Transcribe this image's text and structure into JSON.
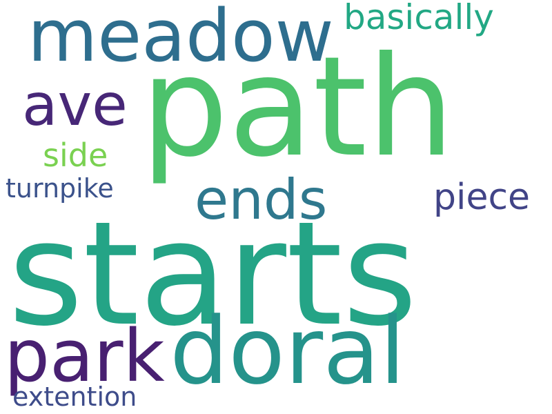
{
  "words": [
    {
      "id": "path",
      "text": "path",
      "color": "#4cc26c"
    },
    {
      "id": "starts",
      "text": "starts",
      "color": "#24a486"
    },
    {
      "id": "doral",
      "text": "doral",
      "color": "#25938b"
    },
    {
      "id": "meadow",
      "text": "meadow",
      "color": "#2e6e8e"
    },
    {
      "id": "park",
      "text": "park",
      "color": "#482071"
    },
    {
      "id": "ends",
      "text": "ends",
      "color": "#2f788e"
    },
    {
      "id": "ave",
      "text": "ave",
      "color": "#472777"
    },
    {
      "id": "basically",
      "text": "basically",
      "color": "#22a884"
    },
    {
      "id": "piece",
      "text": "piece",
      "color": "#414487"
    },
    {
      "id": "side",
      "text": "side",
      "color": "#7ad151"
    },
    {
      "id": "turnpike",
      "text": "turnpike",
      "color": "#3b528b"
    },
    {
      "id": "extention",
      "text": "extention",
      "color": "#3e4c8a"
    }
  ]
}
